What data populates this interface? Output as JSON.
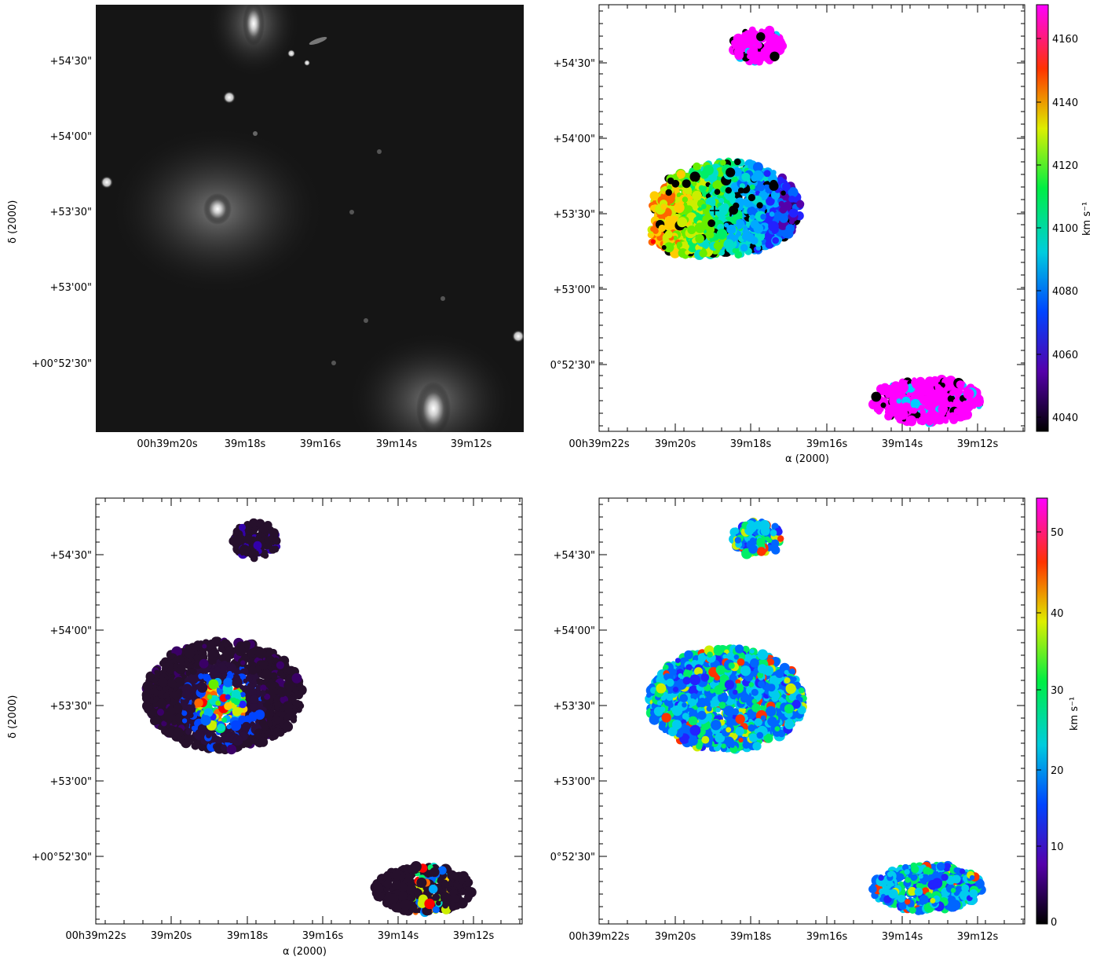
{
  "figure": {
    "panels": [
      {
        "id": "tl",
        "kind": "image-grayscale"
      },
      {
        "id": "tr",
        "kind": "velocity-field",
        "colorbar": {
          "unit_label": "km s⁻¹",
          "ticks": [
            "4040",
            "4060",
            "4080",
            "4100",
            "4120",
            "4140",
            "4160"
          ]
        }
      },
      {
        "id": "bl",
        "kind": "intensity-map"
      },
      {
        "id": "br",
        "kind": "dispersion-map",
        "colorbar": {
          "unit_label": "km s⁻¹",
          "ticks": [
            "0",
            "10",
            "20",
            "30",
            "40",
            "50"
          ]
        }
      }
    ],
    "dec_ticks_top": [
      "+54'30\"",
      "+54'00\"",
      "+53'30\"",
      "+53'00\"",
      "+00°52'30\""
    ],
    "ra_ticks_tl": [
      "00h39m20s",
      "39m18s",
      "39m16s",
      "39m14s",
      "39m12s"
    ],
    "ra_ticks_wide": [
      "00h39m22s",
      "39m20s",
      "39m18s",
      "39m16s",
      "39m14s",
      "39m12s"
    ],
    "dec_axis_label": "δ (2000)",
    "ra_axis_label": "α (2000)"
  },
  "colors": {
    "background": "#ffffff",
    "sky": "#111111",
    "magenta": "#ff00ff"
  }
}
